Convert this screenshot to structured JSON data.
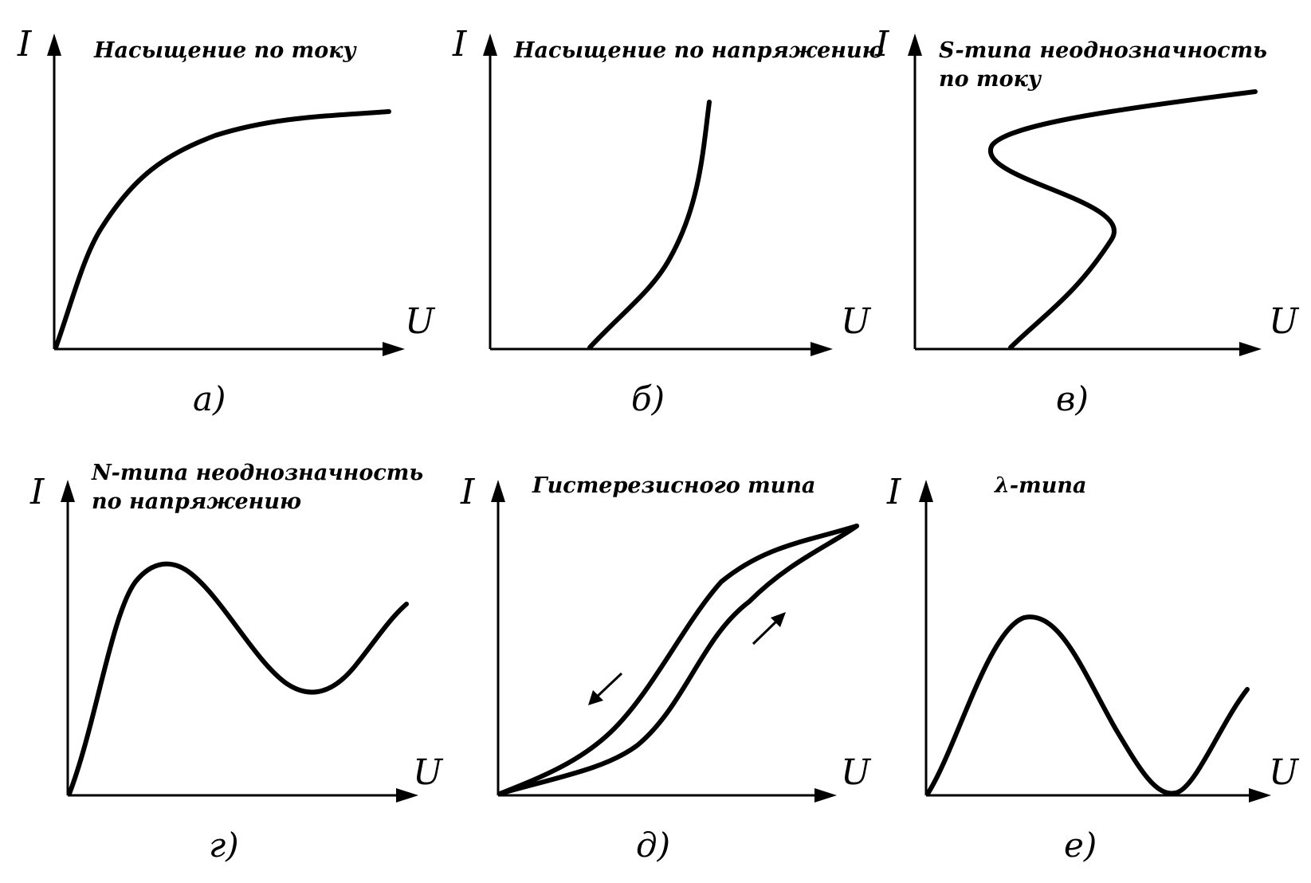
{
  "axes": {
    "y_label": "I",
    "x_label": "U"
  },
  "panels": [
    {
      "id": "a",
      "title": [
        "Насыщение по току"
      ],
      "caption": "а)"
    },
    {
      "id": "b",
      "title": [
        "Насыщение по напряжению"
      ],
      "caption": "б)"
    },
    {
      "id": "v",
      "title": [
        "S-типа неоднозначность",
        "по току"
      ],
      "caption": "в)"
    },
    {
      "id": "g",
      "title": [
        "N-типа неоднозначность",
        "по напряжению"
      ],
      "caption": "г)"
    },
    {
      "id": "d",
      "title": [
        "Гистерезисного типа"
      ],
      "caption": "д)"
    },
    {
      "id": "e",
      "title": [
        "λ-типа"
      ],
      "caption": "е)"
    }
  ]
}
